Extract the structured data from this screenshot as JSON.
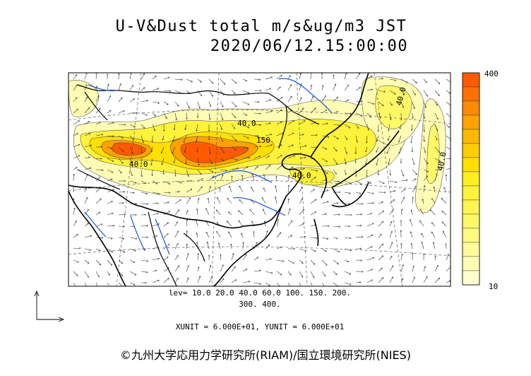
{
  "title": {
    "line1": "U-V&Dust total m/s&ug/m3 JST",
    "line2": "2020/06/12.15:00:00"
  },
  "map": {
    "contour_labels": [
      "40.0",
      "40.0",
      "150",
      "40.0",
      "40.0",
      "40.0"
    ]
  },
  "colorbar": {
    "max_label": "400",
    "min_label": "10",
    "colors": [
      "#ff5a00",
      "#ff7000",
      "#ff8a00",
      "#ffa200",
      "#ffb800",
      "#ffcc00",
      "#ffde00",
      "#ffee22",
      "#fff23a",
      "#fff550",
      "#fff866",
      "#fffa80",
      "#fffb98",
      "#fffdb4",
      "#fffecc"
    ]
  },
  "legend": {
    "levels_line1": "lev= 10.0 20.0 40.0 60.0 100. 150. 200.",
    "levels_line2": "300. 400.",
    "units": "XUNIT = 6.000E+01, YUNIT = 6.000E+01"
  },
  "footer": {
    "copyright": "©九州大学応用力学研究所(RIAM)/国立環境研究所(NIES)"
  }
}
